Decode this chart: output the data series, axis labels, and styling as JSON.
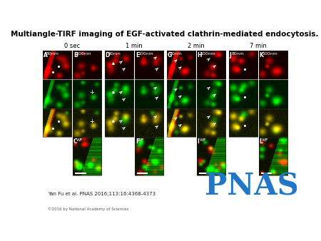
{
  "title": "Multiangle-TIRF imaging of EGF-activated clathrin-mediated endocytosis.",
  "title_fontsize": 7.5,
  "citation": "Yan Fu et al. PNAS 2016;113:16:4368-4373",
  "copyright": "©2016 by National Academy of Sciences",
  "pnas_text": "PNAS",
  "pnas_color": "#2176c7",
  "bg_color": "#ffffff",
  "time_labels": [
    "0 sec",
    "1 min",
    "2 min",
    "7 min"
  ],
  "panel_border_color": "#333333"
}
